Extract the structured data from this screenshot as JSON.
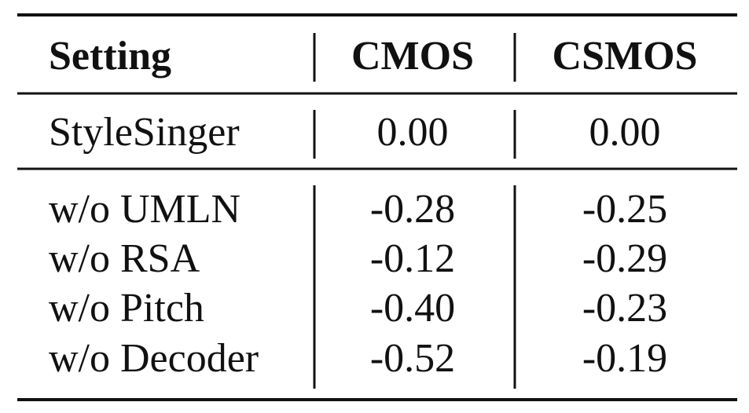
{
  "table": {
    "header": [
      "Setting",
      "CMOS",
      "CSMOS"
    ],
    "rows": [
      [
        "StyleSinger",
        "0.00",
        "0.00"
      ],
      [
        "w/o UMLN",
        "-0.28",
        "-0.25"
      ],
      [
        "w/o RSA",
        "-0.12",
        "-0.29"
      ],
      [
        "w/o Pitch",
        "-0.40",
        "-0.23"
      ],
      [
        "w/o Decoder",
        "-0.52",
        "-0.19"
      ]
    ]
  }
}
